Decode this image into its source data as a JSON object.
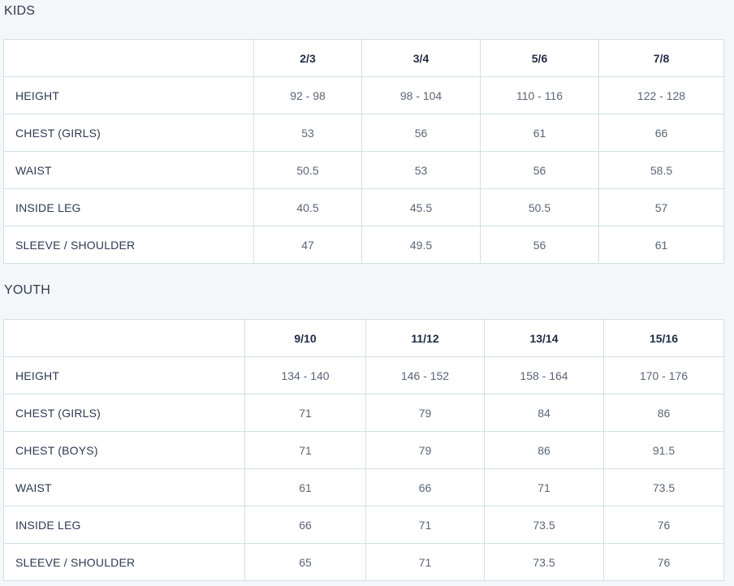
{
  "kids": {
    "title": "KIDS",
    "headers": [
      "",
      "2/3",
      "3/4",
      "5/6",
      "7/8"
    ],
    "rows": [
      {
        "label": "HEIGHT",
        "values": [
          "92 - 98",
          "98 - 104",
          "110 - 116",
          "122 - 128"
        ]
      },
      {
        "label": "CHEST (GIRLS)",
        "values": [
          "53",
          "56",
          "61",
          "66"
        ]
      },
      {
        "label": "WAIST",
        "values": [
          "50.5",
          "53",
          "56",
          "58.5"
        ]
      },
      {
        "label": "INSIDE LEG",
        "values": [
          "40.5",
          "45.5",
          "50.5",
          "57"
        ]
      },
      {
        "label": "SLEEVE / SHOULDER",
        "values": [
          "47",
          "49.5",
          "56",
          "61"
        ]
      }
    ]
  },
  "youth": {
    "title": "YOUTH",
    "headers": [
      "",
      "9/10",
      "11/12",
      "13/14",
      "15/16"
    ],
    "rows": [
      {
        "label": "HEIGHT",
        "values": [
          "134 - 140",
          "146 - 152",
          "158 - 164",
          "170 - 176"
        ]
      },
      {
        "label": "CHEST (GIRLS)",
        "values": [
          "71",
          "79",
          "84",
          "86"
        ]
      },
      {
        "label": "CHEST (BOYS)",
        "values": [
          "71",
          "79",
          "86",
          "91.5"
        ]
      },
      {
        "label": "WAIST",
        "values": [
          "61",
          "66",
          "71",
          "73.5"
        ]
      },
      {
        "label": "INSIDE LEG",
        "values": [
          "66",
          "71",
          "73.5",
          "76"
        ]
      },
      {
        "label": "SLEEVE / SHOULDER",
        "values": [
          "65",
          "71",
          "73.5",
          "76"
        ]
      }
    ]
  }
}
